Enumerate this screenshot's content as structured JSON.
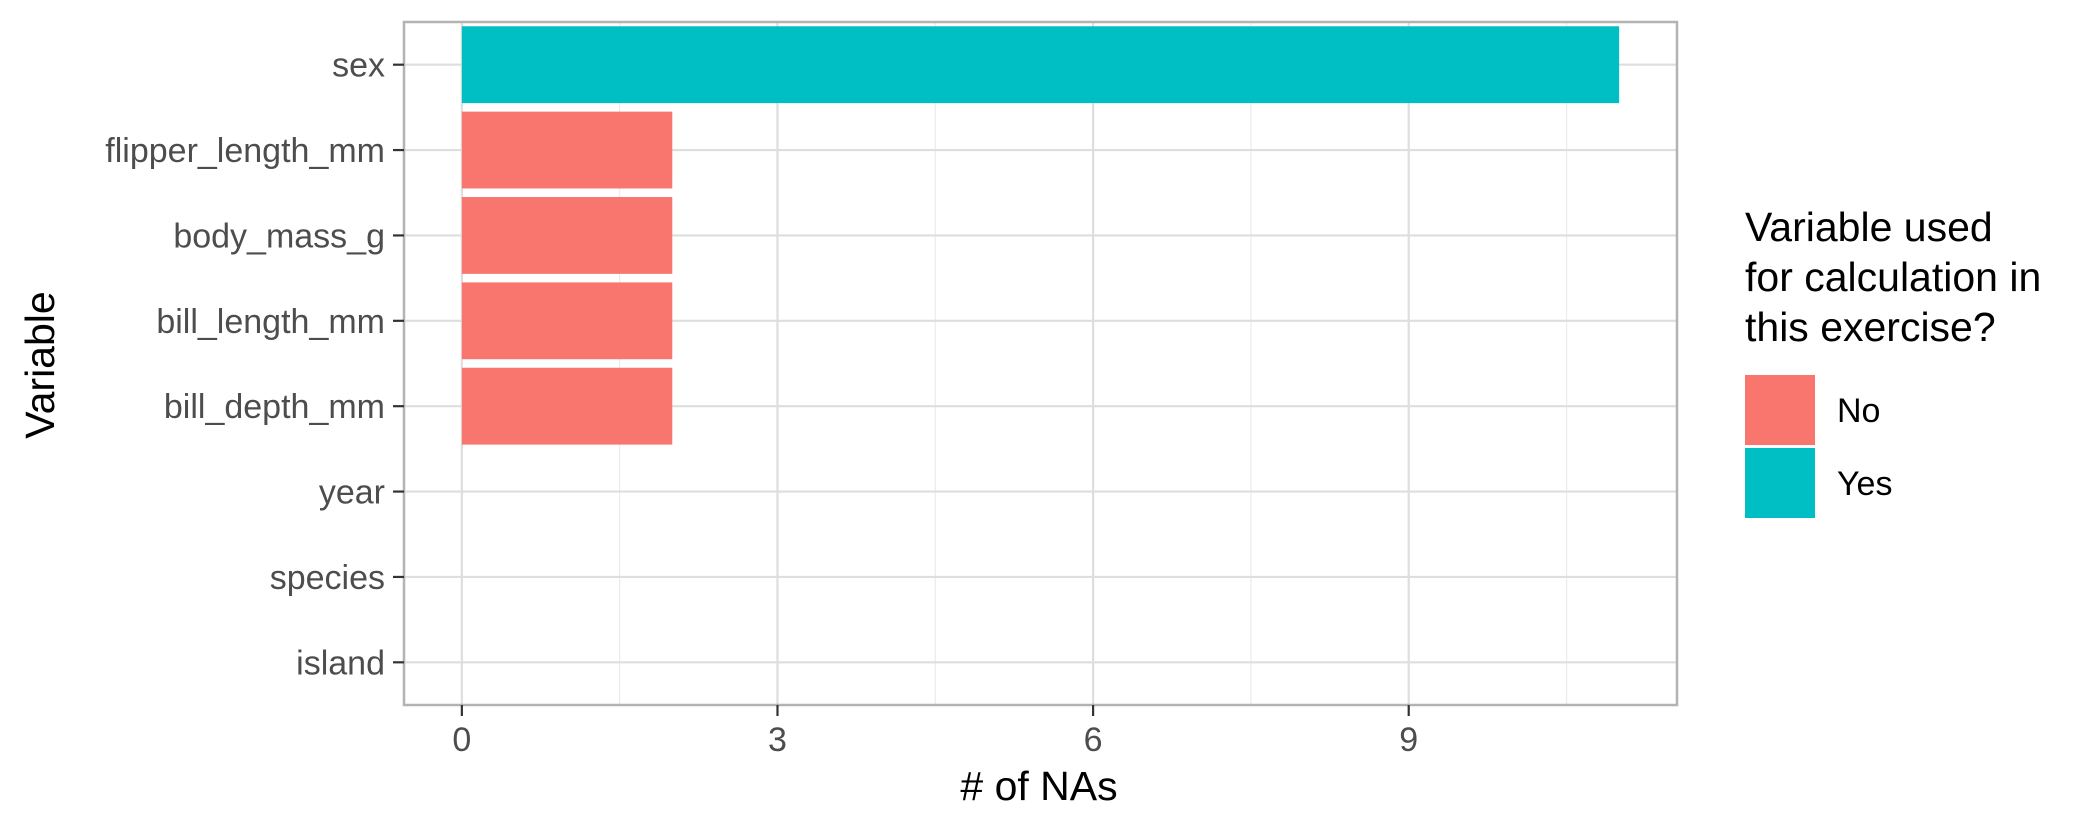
{
  "chart_data": {
    "type": "bar",
    "orientation": "horizontal",
    "categories": [
      "sex",
      "flipper_length_mm",
      "body_mass_g",
      "bill_length_mm",
      "bill_depth_mm",
      "year",
      "species",
      "island"
    ],
    "values": [
      11,
      2,
      2,
      2,
      2,
      0,
      0,
      0
    ],
    "groups": [
      "Yes",
      "No",
      "No",
      "No",
      "No",
      "No",
      "No",
      "No"
    ],
    "xlabel": "# of NAs",
    "ylabel": "Variable",
    "xlim": [
      -0.55,
      11.55
    ],
    "xticks": [
      0,
      3,
      6,
      9
    ],
    "grid": true,
    "legend": {
      "title_lines": [
        "Variable used",
        "for calculation in",
        "this exercise?"
      ],
      "placement": "right",
      "items": [
        {
          "label": "No",
          "color": "#F8766D"
        },
        {
          "label": "Yes",
          "color": "#00BFC4"
        }
      ]
    },
    "colors": {
      "No": "#F8766D",
      "Yes": "#00BFC4"
    }
  }
}
